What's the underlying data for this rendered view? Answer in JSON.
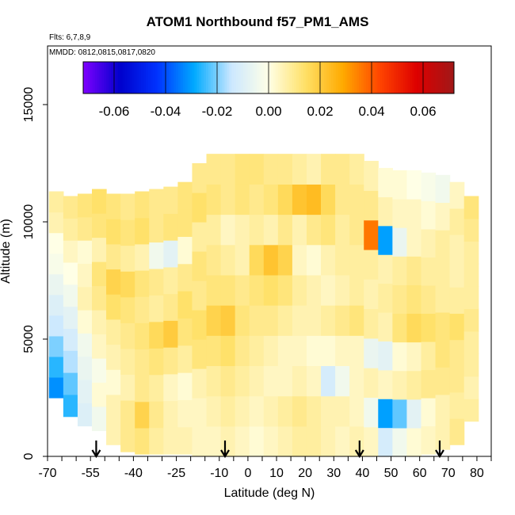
{
  "chart_data": {
    "type": "heatmap",
    "title": "ATOM1 Northbound f57_PM1_AMS",
    "flights_note": "Flts: 6,7,8,9",
    "dates_note": "MMDD: 0812,0815,0817,0820",
    "xlabel": "Latitude (deg N)",
    "ylabel": "Altitude (m)",
    "xlim": [
      -70,
      85
    ],
    "ylim": [
      0,
      17500
    ],
    "x_ticks": [
      -70,
      -55,
      -40,
      -25,
      -10,
      0,
      10,
      20,
      30,
      40,
      50,
      60,
      70,
      80
    ],
    "x_ticks_minor": [
      -65,
      -60,
      -50,
      -45,
      -35,
      -30,
      -20,
      -15,
      -5,
      5,
      15,
      25,
      35,
      45,
      55,
      65,
      75,
      85
    ],
    "y_ticks": [
      0,
      5000,
      10000,
      15000
    ],
    "colorbar": {
      "min": -0.072,
      "max": 0.072,
      "ticks": [
        -0.06,
        -0.04,
        -0.02,
        0.0,
        0.02,
        0.04,
        0.06
      ],
      "tick_labels": [
        "-0.06",
        "-0.04",
        "-0.02",
        "0.00",
        "0.02",
        "0.04",
        "0.06"
      ],
      "colors": [
        "#7f00ff",
        "#0000cc",
        "#0033ff",
        "#00aaff",
        "#cce8ff",
        "#ffffe6",
        "#ffe066",
        "#ffaa00",
        "#ff4400",
        "#dd0000",
        "#a01818"
      ]
    },
    "profile_markers_latitude": [
      -53,
      -8,
      39,
      67
    ],
    "columns": [
      {
        "x": -67,
        "ybot": 2500,
        "ytop": 11300,
        "v": [
          -0.032,
          -0.026,
          -0.02,
          -0.014,
          -0.01,
          -0.006,
          -0.002,
          0.0,
          0.006,
          0.008
        ]
      },
      {
        "x": -62,
        "ybot": 1700,
        "ytop": 11100,
        "v": [
          -0.026,
          -0.022,
          -0.016,
          -0.012,
          -0.008,
          -0.004,
          0.0,
          0.004,
          0.008,
          0.01
        ]
      },
      {
        "x": -57,
        "ybot": 1300,
        "ytop": 11200,
        "v": [
          -0.01,
          -0.008,
          -0.006,
          -0.004,
          0.002,
          0.006,
          0.004,
          0.002,
          0.01,
          0.012
        ]
      },
      {
        "x": -52,
        "ybot": 1100,
        "ytop": 11400,
        "v": [
          -0.004,
          0.002,
          -0.002,
          0.004,
          0.006,
          0.01,
          0.012,
          0.006,
          0.012,
          0.014
        ]
      },
      {
        "x": -47,
        "ybot": 500,
        "ytop": 11200,
        "v": [
          0.006,
          0.006,
          0.002,
          0.006,
          0.008,
          0.014,
          0.018,
          0.01,
          0.014,
          0.012
        ]
      },
      {
        "x": -42,
        "ybot": 200,
        "ytop": 11200,
        "v": [
          0.01,
          0.01,
          0.006,
          0.008,
          0.01,
          0.012,
          0.016,
          0.008,
          0.012,
          0.01
        ]
      },
      {
        "x": -37,
        "ybot": 100,
        "ytop": 11300,
        "v": [
          0.012,
          0.018,
          0.01,
          0.01,
          0.012,
          0.01,
          0.012,
          0.006,
          0.014,
          0.012
        ]
      },
      {
        "x": -32,
        "ybot": 100,
        "ytop": 11400,
        "v": [
          0.008,
          0.01,
          0.008,
          0.012,
          0.016,
          0.008,
          0.01,
          -0.004,
          0.01,
          0.01
        ]
      },
      {
        "x": -27,
        "ybot": 100,
        "ytop": 11500,
        "v": [
          0.006,
          0.006,
          0.004,
          0.01,
          0.02,
          0.01,
          0.008,
          -0.008,
          0.012,
          0.01
        ]
      },
      {
        "x": -22,
        "ybot": 100,
        "ytop": 11700,
        "v": [
          0.006,
          0.004,
          0.002,
          0.008,
          0.012,
          0.014,
          0.01,
          0.002,
          0.012,
          0.012
        ]
      },
      {
        "x": -17,
        "ybot": 0,
        "ytop": 12500,
        "v": [
          0.004,
          0.004,
          0.006,
          0.012,
          0.014,
          0.01,
          0.012,
          0.008,
          0.014,
          0.01
        ]
      },
      {
        "x": -12,
        "ybot": 0,
        "ytop": 12900,
        "v": [
          0.004,
          0.006,
          0.008,
          0.012,
          0.018,
          0.012,
          0.01,
          0.008,
          0.012,
          0.01
        ]
      },
      {
        "x": -7,
        "ybot": 0,
        "ytop": 12900,
        "v": [
          0.006,
          0.008,
          0.01,
          0.014,
          0.02,
          0.012,
          0.008,
          0.004,
          0.01,
          0.01
        ]
      },
      {
        "x": -2,
        "ybot": 0,
        "ytop": 12900,
        "v": [
          0.004,
          0.006,
          0.008,
          0.01,
          0.012,
          0.01,
          0.006,
          0.006,
          0.012,
          0.012
        ]
      },
      {
        "x": 3,
        "ybot": 0,
        "ytop": 12900,
        "v": [
          0.002,
          0.004,
          0.006,
          0.008,
          0.01,
          0.012,
          0.016,
          0.008,
          0.01,
          0.012
        ]
      },
      {
        "x": 8,
        "ybot": 0,
        "ytop": 12900,
        "v": [
          0.004,
          0.006,
          0.004,
          0.006,
          0.01,
          0.014,
          0.022,
          0.006,
          0.012,
          0.01
        ]
      },
      {
        "x": 13,
        "ybot": 0,
        "ytop": 12900,
        "v": [
          0.006,
          0.008,
          0.004,
          0.004,
          0.008,
          0.012,
          0.018,
          0.01,
          0.016,
          0.01
        ]
      },
      {
        "x": 18,
        "ybot": 0,
        "ytop": 12900,
        "v": [
          0.008,
          0.01,
          0.006,
          0.004,
          0.006,
          0.008,
          0.004,
          0.006,
          0.022,
          0.008
        ]
      },
      {
        "x": 23,
        "ybot": 0,
        "ytop": 12900,
        "v": [
          0.008,
          0.008,
          0.004,
          0.002,
          0.006,
          0.006,
          0.002,
          0.01,
          0.024,
          0.006
        ]
      },
      {
        "x": 28,
        "ybot": 0,
        "ytop": 12900,
        "v": [
          0.006,
          0.006,
          -0.012,
          0.002,
          0.008,
          0.004,
          0.006,
          0.012,
          0.016,
          0.01
        ]
      },
      {
        "x": 33,
        "ybot": 0,
        "ytop": 12900,
        "v": [
          0.004,
          0.006,
          -0.004,
          0.004,
          0.01,
          0.006,
          0.008,
          0.008,
          0.01,
          0.01
        ]
      },
      {
        "x": 38,
        "ybot": 0,
        "ytop": 12900,
        "v": [
          0.006,
          0.004,
          0.004,
          0.004,
          0.012,
          0.008,
          0.008,
          0.01,
          0.01,
          0.008
        ]
      },
      {
        "x": 43,
        "ybot": 0,
        "ytop": 12600,
        "v": [
          0.004,
          -0.004,
          0.006,
          -0.006,
          0.008,
          0.006,
          0.008,
          0.036,
          0.01,
          0.006
        ]
      },
      {
        "x": 48,
        "ybot": 0,
        "ytop": 12300,
        "v": [
          -0.012,
          -0.03,
          0.004,
          -0.008,
          0.006,
          0.008,
          0.006,
          -0.03,
          0.006,
          0.002
        ]
      },
      {
        "x": 53,
        "ybot": 0,
        "ytop": 12200,
        "v": [
          -0.004,
          -0.022,
          0.006,
          0.002,
          0.012,
          0.01,
          0.008,
          -0.006,
          0.004,
          0.002
        ]
      },
      {
        "x": 58,
        "ybot": 0,
        "ytop": 12200,
        "v": [
          0.002,
          -0.008,
          0.008,
          0.004,
          0.016,
          0.012,
          0.01,
          0.004,
          0.004,
          0.0
        ]
      },
      {
        "x": 63,
        "ybot": 100,
        "ytop": 12100,
        "v": [
          0.004,
          0.002,
          0.01,
          0.008,
          0.014,
          0.01,
          0.008,
          0.006,
          0.002,
          -0.002
        ]
      },
      {
        "x": 68,
        "ybot": 300,
        "ytop": 12000,
        "v": [
          0.006,
          0.006,
          0.01,
          0.012,
          0.012,
          0.008,
          0.008,
          0.008,
          0.004,
          -0.004
        ]
      },
      {
        "x": 73,
        "ybot": 500,
        "ytop": 11700,
        "v": [
          0.01,
          0.008,
          0.01,
          0.01,
          0.014,
          0.008,
          0.006,
          0.006,
          0.008,
          0.004
        ]
      },
      {
        "x": 78,
        "ybot": 1500,
        "ytop": 11100,
        "v": [
          0.008,
          0.006,
          0.008,
          0.008,
          0.01,
          0.008,
          0.008,
          0.008,
          0.01,
          0.012
        ]
      }
    ]
  }
}
